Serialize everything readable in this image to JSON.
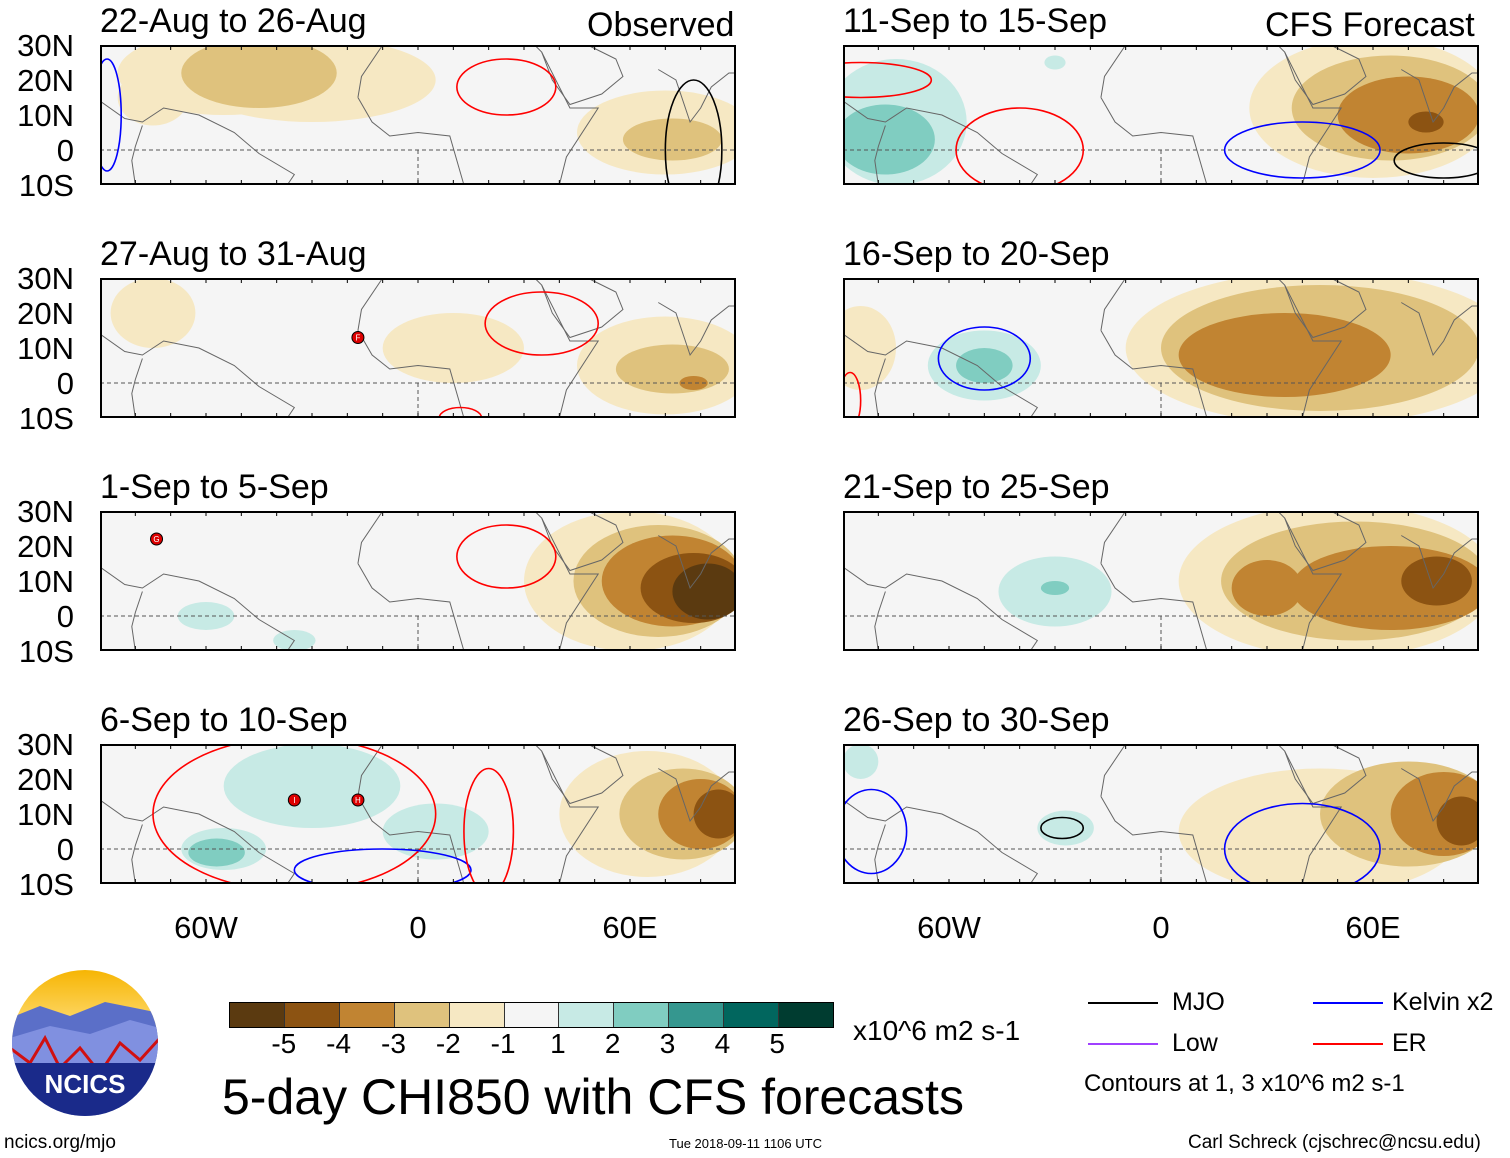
{
  "header": {
    "left_label": "Observed",
    "right_label": "CFS Forecast"
  },
  "lat_labels": [
    "30N",
    "20N",
    "10N",
    "0",
    "10S"
  ],
  "lon_labels": [
    "60W",
    "0",
    "60E"
  ],
  "panels": [
    {
      "title": "22-Aug to 26-Aug",
      "blobs": [
        [
          -55,
          22,
          30,
          12,
          -1
        ],
        [
          -30,
          20,
          35,
          12,
          -1
        ],
        [
          -45,
          22,
          22,
          10,
          -2
        ],
        [
          -75,
          15,
          10,
          8,
          -1
        ],
        [
          70,
          5,
          25,
          12,
          -1
        ],
        [
          72,
          3,
          14,
          6,
          -2
        ]
      ],
      "contours": [
        [
          25,
          18,
          14,
          8,
          "ER"
        ],
        [
          -88,
          10,
          4,
          16,
          "Kelvin"
        ],
        [
          78,
          0,
          8,
          20,
          "MJO"
        ]
      ],
      "storms": []
    },
    {
      "title": "27-Aug to 31-Aug",
      "blobs": [
        [
          -75,
          20,
          12,
          10,
          -1
        ],
        [
          10,
          10,
          20,
          10,
          -1
        ],
        [
          70,
          5,
          25,
          14,
          -1
        ],
        [
          72,
          4,
          16,
          7,
          -2
        ],
        [
          78,
          0,
          4,
          2,
          -3
        ]
      ],
      "contours": [
        [
          35,
          17,
          16,
          9,
          "ER"
        ],
        [
          12,
          -10,
          6,
          3,
          "ER"
        ]
      ],
      "storms": [
        [
          -17,
          13,
          "F"
        ]
      ]
    },
    {
      "title": "1-Sep to 5-Sep",
      "blobs": [
        [
          60,
          10,
          30,
          20,
          -1
        ],
        [
          68,
          10,
          24,
          16,
          -2
        ],
        [
          72,
          10,
          20,
          13,
          -3
        ],
        [
          78,
          8,
          15,
          10,
          -4
        ],
        [
          82,
          7,
          10,
          8,
          -5
        ],
        [
          -60,
          0,
          8,
          4,
          1
        ],
        [
          -35,
          -7,
          6,
          3,
          1
        ]
      ],
      "contours": [
        [
          25,
          17,
          14,
          9,
          "ER"
        ]
      ],
      "storms": [
        [
          -74,
          22,
          "G"
        ]
      ]
    },
    {
      "title": "6-Sep to 10-Sep",
      "blobs": [
        [
          -30,
          18,
          25,
          12,
          1
        ],
        [
          5,
          5,
          15,
          8,
          1
        ],
        [
          -55,
          0,
          12,
          6,
          1
        ],
        [
          -57,
          -1,
          8,
          4,
          2
        ],
        [
          65,
          10,
          25,
          18,
          -1
        ],
        [
          75,
          10,
          18,
          13,
          -2
        ],
        [
          80,
          10,
          12,
          10,
          -3
        ],
        [
          85,
          10,
          7,
          7,
          -4
        ]
      ],
      "contours": [
        [
          -35,
          10,
          40,
          22,
          "ER"
        ],
        [
          -10,
          -6,
          25,
          6,
          "Kelvin"
        ],
        [
          20,
          5,
          7,
          18,
          "ER"
        ]
      ],
      "storms": [
        [
          -35,
          14,
          "I"
        ],
        [
          -17,
          14,
          "H"
        ]
      ]
    },
    {
      "title": "11-Sep to 15-Sep",
      "blobs": [
        [
          -75,
          8,
          20,
          18,
          1
        ],
        [
          -78,
          3,
          14,
          10,
          2
        ],
        [
          -30,
          25,
          3,
          2,
          1
        ],
        [
          60,
          12,
          35,
          20,
          -1
        ],
        [
          65,
          12,
          28,
          15,
          -2
        ],
        [
          70,
          10,
          20,
          11,
          -3
        ],
        [
          75,
          8,
          5,
          3,
          -4
        ]
      ],
      "contours": [
        [
          -85,
          20,
          20,
          5,
          "ER"
        ],
        [
          -40,
          0,
          18,
          12,
          "ER"
        ],
        [
          40,
          0,
          22,
          8,
          "Kelvin"
        ],
        [
          80,
          -3,
          14,
          5,
          "MJO"
        ]
      ],
      "storms": []
    },
    {
      "title": "16-Sep to 20-Sep",
      "blobs": [
        [
          -85,
          10,
          10,
          12,
          -1
        ],
        [
          -50,
          5,
          16,
          10,
          1
        ],
        [
          -50,
          5,
          8,
          5,
          2
        ],
        [
          45,
          10,
          55,
          22,
          -1
        ],
        [
          45,
          10,
          45,
          18,
          -2
        ],
        [
          35,
          8,
          30,
          12,
          -3
        ]
      ],
      "contours": [
        [
          -50,
          7,
          13,
          9,
          "Kelvin"
        ],
        [
          -88,
          -5,
          3,
          8,
          "ER"
        ]
      ],
      "storms": []
    },
    {
      "title": "21-Sep to 25-Sep",
      "blobs": [
        [
          -30,
          7,
          16,
          10,
          1
        ],
        [
          -30,
          8,
          4,
          2,
          2
        ],
        [
          50,
          10,
          45,
          22,
          -1
        ],
        [
          55,
          10,
          38,
          17,
          -2
        ],
        [
          65,
          8,
          28,
          12,
          -3
        ],
        [
          78,
          10,
          10,
          7,
          -4
        ],
        [
          30,
          8,
          10,
          8,
          -3
        ]
      ],
      "contours": [],
      "storms": []
    },
    {
      "title": "26-Sep to 30-Sep",
      "blobs": [
        [
          -85,
          25,
          5,
          5,
          1
        ],
        [
          -27,
          6,
          8,
          5,
          1
        ],
        [
          45,
          5,
          40,
          18,
          -1
        ],
        [
          70,
          10,
          25,
          15,
          -2
        ],
        [
          80,
          10,
          15,
          12,
          -3
        ],
        [
          85,
          8,
          7,
          7,
          -4
        ]
      ],
      "contours": [
        [
          -28,
          6,
          6,
          3,
          "MJO"
        ],
        [
          40,
          0,
          22,
          13,
          "Kelvin"
        ],
        [
          -82,
          5,
          10,
          12,
          "Kelvin"
        ]
      ],
      "storms": []
    }
  ],
  "colorbar": {
    "labels": [
      "-5",
      "-4",
      "-3",
      "-2",
      "-1",
      "1",
      "2",
      "3",
      "4",
      "5"
    ],
    "colors": [
      "#5b3a10",
      "#8c5312",
      "#c18432",
      "#dfc27d",
      "#f6e8c3",
      "#f5f5f5",
      "#c7eae5",
      "#80cdc1",
      "#35978f",
      "#01665e",
      "#003c30"
    ],
    "units": "x10^6 m2 s-1"
  },
  "main_title": "5-day CHI850 with CFS forecasts",
  "legend": {
    "items": [
      {
        "label": "MJO",
        "color": "#000000"
      },
      {
        "label": "Kelvin x2",
        "color": "#0000ff"
      },
      {
        "label": "Low",
        "color": "#a040ff"
      },
      {
        "label": "ER",
        "color": "#ff0000"
      }
    ],
    "note": "Contours at 1, 3 x10^6 m2 s-1"
  },
  "logo_text": "NCICS",
  "footer": {
    "url": "ncics.org/mjo",
    "timestamp": "Tue 2018-09-11 1106 UTC",
    "author": "Carl Schreck (cjschrec@ncsu.edu)"
  }
}
